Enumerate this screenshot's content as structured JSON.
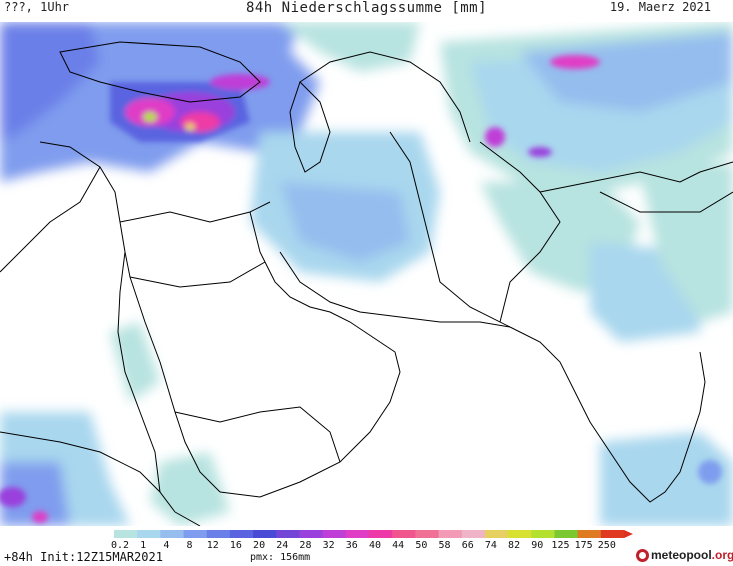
{
  "header": {
    "title": "84h Niederschlagssumme [mm]",
    "top_left": "???, 1Uhr",
    "top_right": "19. Maerz 2021"
  },
  "footer": {
    "run_info": "+84h Init:12Z15MAR2021",
    "pmx": "pmx: 156mm",
    "logo": {
      "brand": "meteopool",
      "tld": ".org"
    }
  },
  "legend": {
    "labels": [
      "0.2",
      "1",
      "4",
      "8",
      "12",
      "16",
      "20",
      "24",
      "28",
      "32",
      "36",
      "40",
      "44",
      "50",
      "58",
      "66",
      "74",
      "82",
      "90",
      "125",
      "175",
      "250"
    ],
    "colors": [
      "#b7e3e0",
      "#a9d7ee",
      "#95bdee",
      "#7f9cee",
      "#6a7fe8",
      "#5a63e0",
      "#4a4ad6",
      "#7446d8",
      "#9a40dc",
      "#c03ed8",
      "#e03cc6",
      "#ee3aa6",
      "#f0558e",
      "#f07096",
      "#f39ab6",
      "#f0b4c8",
      "#e6d060",
      "#d8e030",
      "#b4e030",
      "#7cc830",
      "#e07a20",
      "#e03a20"
    ],
    "arrow_color": "#e03020"
  },
  "map": {
    "region": "Middle East / Arabian Peninsula / Indian subcontinent",
    "land_color": "#ffffff",
    "coast_color": "#000000"
  }
}
